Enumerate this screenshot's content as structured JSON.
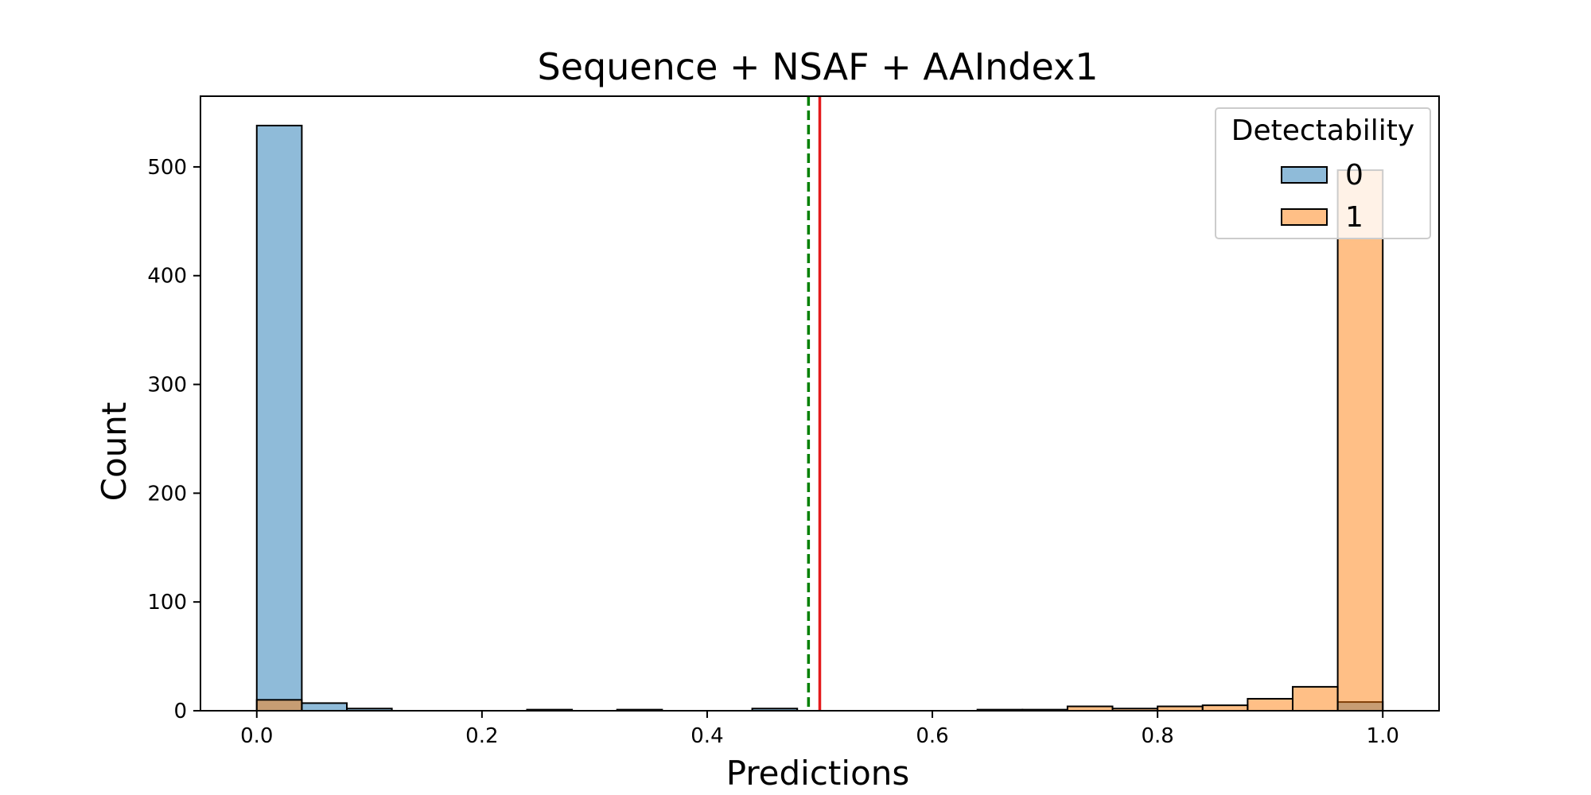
{
  "chart_data": {
    "type": "bar",
    "title": "Sequence + NSAF + AAIndex1",
    "xlabel": "Predictions",
    "ylabel": "Count",
    "xlim": [
      -0.05,
      1.05
    ],
    "ylim": [
      0,
      565
    ],
    "x_ticks": [
      "0.0",
      "0.2",
      "0.4",
      "0.6",
      "0.8",
      "1.0"
    ],
    "y_ticks": [
      "0",
      "100",
      "200",
      "300",
      "400",
      "500"
    ],
    "grid": false,
    "bin_width": 0.04,
    "bin_edges": [
      0.0,
      0.04,
      0.08,
      0.12,
      0.16,
      0.2,
      0.24,
      0.28,
      0.32,
      0.36,
      0.4,
      0.44,
      0.48,
      0.52,
      0.56,
      0.6,
      0.64,
      0.68,
      0.72,
      0.76,
      0.8,
      0.84,
      0.88,
      0.92,
      0.96,
      1.0
    ],
    "legend": {
      "title": "Detectability",
      "position": "top-right",
      "entries": [
        "0",
        "1"
      ]
    },
    "series": [
      {
        "name": "0",
        "color": "#1f77b4",
        "counts": [
          538,
          7,
          2,
          0,
          0,
          0,
          1,
          0,
          1,
          0,
          0,
          2,
          0,
          0,
          0,
          0,
          0,
          0,
          0,
          0,
          0,
          0,
          0,
          0,
          8
        ]
      },
      {
        "name": "1",
        "color": "#ff7f0e",
        "counts": [
          10,
          0,
          0,
          0,
          0,
          0,
          0,
          0,
          0,
          0,
          0,
          0,
          0,
          0,
          0,
          0,
          1,
          1,
          4,
          2,
          4,
          5,
          11,
          22,
          497
        ]
      }
    ],
    "vlines": [
      {
        "x": 0.49,
        "color": "#008000",
        "style": "dashed"
      },
      {
        "x": 0.5,
        "color": "#e41a1c",
        "style": "solid"
      }
    ]
  }
}
